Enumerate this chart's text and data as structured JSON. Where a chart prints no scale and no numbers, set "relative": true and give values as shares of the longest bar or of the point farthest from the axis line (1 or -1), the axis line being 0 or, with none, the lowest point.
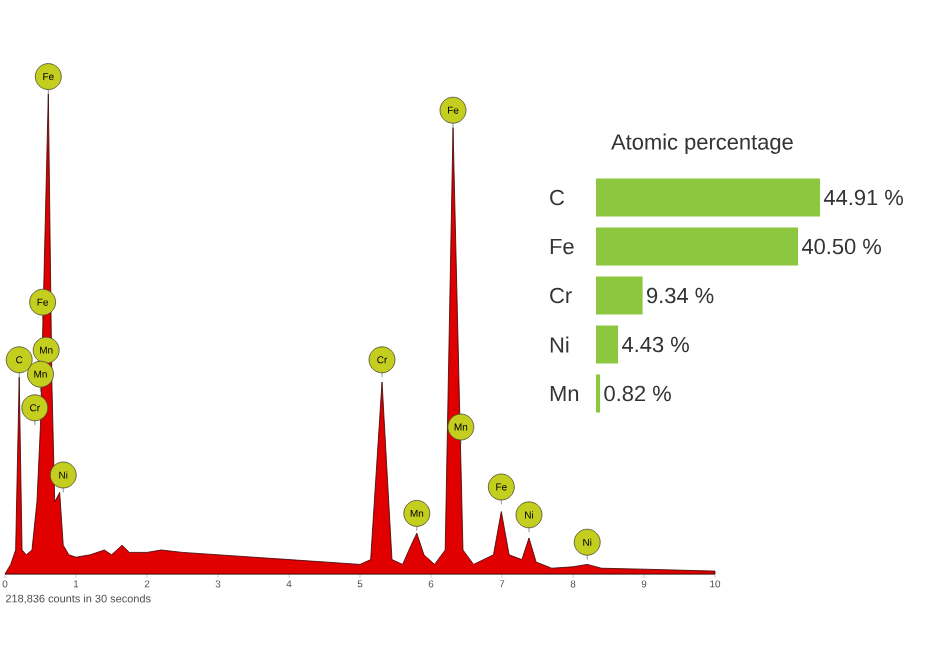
{
  "chart_data": [
    {
      "type": "area",
      "relative": true,
      "color": "#e00000",
      "x": [
        0,
        0.08,
        0.15,
        0.2,
        0.24,
        0.3,
        0.38,
        0.45,
        0.5,
        0.61,
        0.66,
        0.7,
        0.77,
        0.82,
        0.9,
        1.0,
        1.2,
        1.4,
        1.5,
        1.65,
        1.75,
        2.0,
        2.2,
        2.5,
        3.0,
        3.5,
        4.0,
        4.5,
        5.0,
        5.15,
        5.31,
        5.45,
        5.6,
        5.72,
        5.8,
        5.9,
        6.05,
        6.2,
        6.31,
        6.45,
        6.6,
        6.88,
        6.99,
        7.1,
        7.28,
        7.38,
        7.48,
        7.7,
        8.0,
        8.2,
        8.4,
        9.0,
        10.0
      ],
      "values": [
        0,
        0.02,
        0.05,
        0.41,
        0.05,
        0.04,
        0.05,
        0.15,
        0.31,
        1.0,
        0.4,
        0.15,
        0.17,
        0.06,
        0.04,
        0.035,
        0.04,
        0.05,
        0.04,
        0.06,
        0.045,
        0.045,
        0.05,
        0.045,
        0.04,
        0.035,
        0.03,
        0.025,
        0.02,
        0.03,
        0.4,
        0.03,
        0.02,
        0.06,
        0.085,
        0.04,
        0.02,
        0.05,
        0.93,
        0.05,
        0.02,
        0.04,
        0.13,
        0.04,
        0.03,
        0.075,
        0.025,
        0.012,
        0.015,
        0.02,
        0.012,
        0.01,
        0.006
      ],
      "xlim": [
        0,
        10
      ],
      "xticks": [
        0,
        1,
        2,
        3,
        4,
        5,
        6,
        7,
        8,
        9,
        10
      ],
      "annotations": [
        {
          "text": "Fe",
          "x": 0.61,
          "y": 1.0
        },
        {
          "text": "Fe",
          "x": 0.53,
          "y": 0.53
        },
        {
          "text": "C",
          "x": 0.2,
          "y": 0.41
        },
        {
          "text": "Mn",
          "x": 0.58,
          "y": 0.43
        },
        {
          "text": "Mn",
          "x": 0.5,
          "y": 0.38
        },
        {
          "text": "Cr",
          "x": 0.42,
          "y": 0.31
        },
        {
          "text": "Ni",
          "x": 0.82,
          "y": 0.17
        },
        {
          "text": "Cr",
          "x": 5.31,
          "y": 0.41
        },
        {
          "text": "Mn",
          "x": 5.8,
          "y": 0.09
        },
        {
          "text": "Fe",
          "x": 6.31,
          "y": 0.93
        },
        {
          "text": "Mn",
          "x": 6.42,
          "y": 0.27
        },
        {
          "text": "Fe",
          "x": 6.99,
          "y": 0.145
        },
        {
          "text": "Ni",
          "x": 7.38,
          "y": 0.087
        },
        {
          "text": "Ni",
          "x": 8.2,
          "y": 0.03
        },
        "218,836 counts in 30 seconds"
      ]
    },
    {
      "type": "bar",
      "orientation": "horizontal",
      "title": "Atomic percentage",
      "color": "#8dc63f",
      "categories": [
        "C",
        "Fe",
        "Cr",
        "Ni",
        "Mn"
      ],
      "values": [
        44.91,
        40.5,
        9.34,
        4.43,
        0.82
      ],
      "value_labels": [
        "44.91 %",
        "40.50 %",
        "9.34 %",
        "4.43 %",
        "0.82 %"
      ]
    }
  ]
}
